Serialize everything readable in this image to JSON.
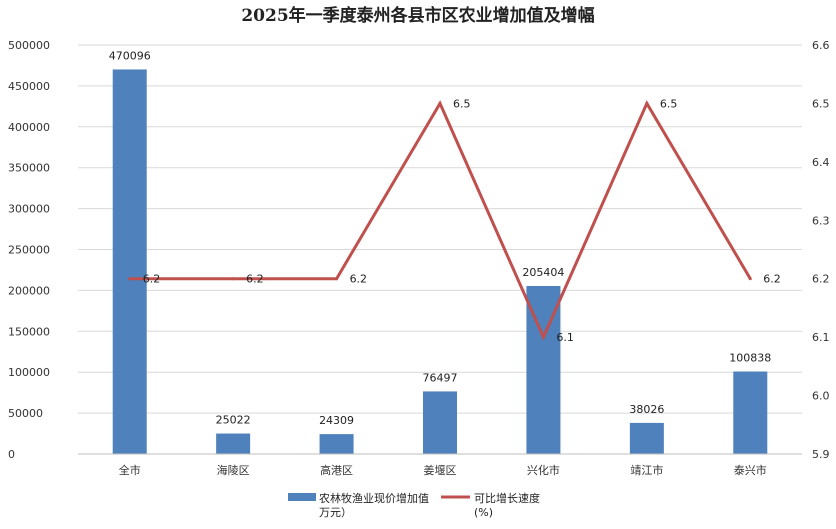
{
  "chart_data": {
    "type": "bar",
    "title": "2025年一季度泰州各县市区农业增加值及增幅",
    "categories": [
      "全市",
      "海陵区",
      "高港区",
      "姜堰区",
      "兴化市",
      "靖江市",
      "泰兴市"
    ],
    "series": [
      {
        "name": "农林牧渔业现价增加值（万元）",
        "type": "bar",
        "axis": "left",
        "color": "#4f81bd",
        "values": [
          470096,
          25022,
          24309,
          76497,
          205404,
          38026,
          100838
        ]
      },
      {
        "name": "可比增长速度（%）",
        "type": "line",
        "axis": "right",
        "color": "#c0504d",
        "values": [
          6.2,
          6.2,
          6.2,
          6.5,
          6.1,
          6.5,
          6.2
        ]
      }
    ],
    "ylim": [
      0,
      500000
    ],
    "yticks": [
      "0",
      "50000",
      "100000",
      "150000",
      "200000",
      "250000",
      "300000",
      "350000",
      "400000",
      "450000",
      "500000"
    ],
    "y2lim": [
      5.9,
      6.6
    ],
    "y2ticks": [
      "5.9",
      "6.0",
      "6.1",
      "6.2",
      "6.3",
      "6.4",
      "6.5",
      "6.6"
    ],
    "grid": true,
    "legend": {
      "position": "bottom",
      "bar_label_line1": "农林牧渔业现价增加值",
      "bar_label_line2": "万元）",
      "line_label_line1": "可比增长速度",
      "line_label_line2": "(%)"
    }
  }
}
